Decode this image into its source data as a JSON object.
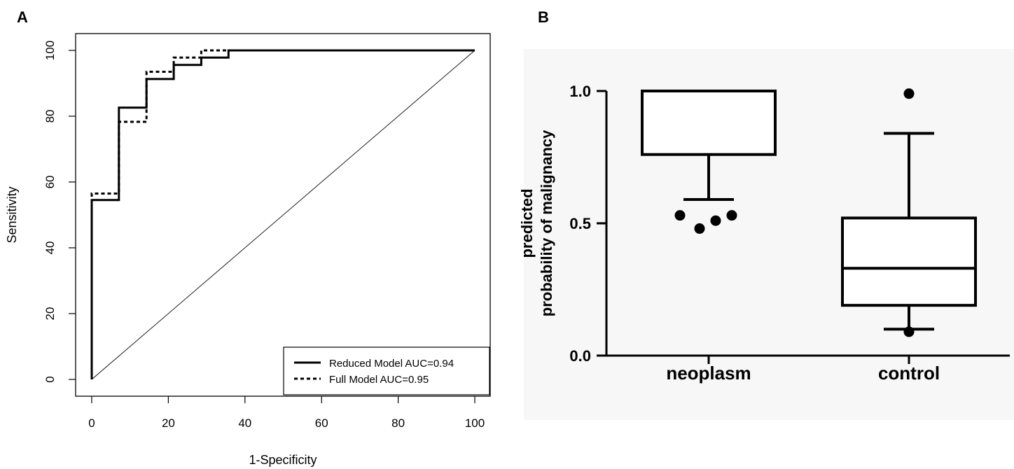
{
  "chart_data": [
    {
      "panel": "A",
      "type": "line",
      "xlabel": "1-Specificity",
      "ylabel": "Sensitivity",
      "xlim": [
        0,
        100
      ],
      "ylim": [
        0,
        100
      ],
      "xticks": [
        0,
        20,
        40,
        60,
        80,
        100
      ],
      "yticks": [
        0,
        20,
        40,
        60,
        80,
        100
      ],
      "grid": false,
      "legend_position": "bottom-right",
      "series": [
        {
          "name": "Reduced Model AUC=0.94",
          "style": "solid",
          "x": [
            0,
            0,
            7.1,
            7.1,
            14.3,
            14.3,
            21.4,
            21.4,
            28.6,
            28.6,
            35.7,
            35.7,
            100
          ],
          "y": [
            0,
            54.5,
            54.5,
            82.6,
            82.6,
            91.3,
            91.3,
            95.6,
            95.6,
            97.8,
            97.8,
            100,
            100
          ]
        },
        {
          "name": "Full Model AUC=0.95",
          "style": "dashed",
          "x": [
            0,
            0,
            7.1,
            7.1,
            14.3,
            14.3,
            21.4,
            21.4,
            28.6,
            28.6,
            35.7,
            35.7,
            100
          ],
          "y": [
            0,
            56.5,
            56.5,
            78.3,
            78.3,
            93.5,
            93.5,
            97.8,
            97.8,
            100,
            100,
            100,
            100
          ]
        },
        {
          "name": "",
          "style": "thin",
          "x": [
            0,
            100
          ],
          "y": [
            0,
            100
          ]
        }
      ]
    },
    {
      "panel": "B",
      "type": "box",
      "ylabel_line1": "predicted",
      "ylabel_line2": "probability of malignancy",
      "ylim": [
        0,
        1.0
      ],
      "yticks": [
        "0.0",
        "0.5",
        "1.0"
      ],
      "yticks_values": [
        0,
        0.5,
        1.0
      ],
      "categories": [
        "neoplasm",
        "control"
      ],
      "boxes": [
        {
          "category": "neoplasm",
          "whisker_low": 0.59,
          "q1": 0.76,
          "median": 1.0,
          "q3": 1.0,
          "whisker_high": 1.0,
          "outliers": [
            0.53,
            0.48,
            0.51,
            0.53
          ]
        },
        {
          "category": "control",
          "whisker_low": 0.1,
          "q1": 0.19,
          "median": 0.33,
          "q3": 0.52,
          "whisker_high": 0.84,
          "outliers": [
            0.99,
            0.09
          ]
        }
      ]
    }
  ]
}
